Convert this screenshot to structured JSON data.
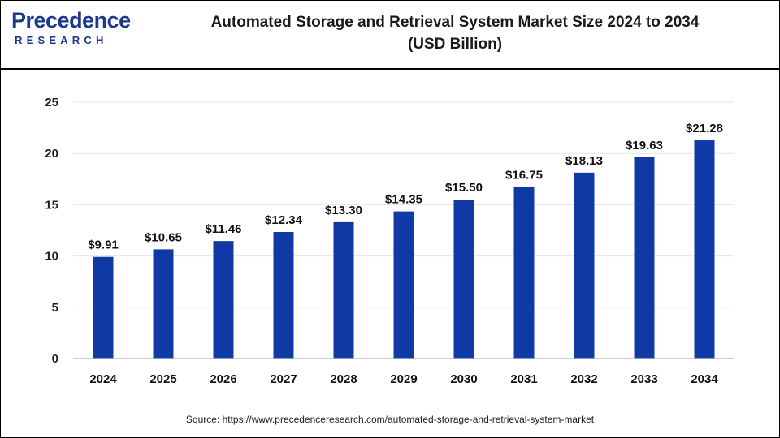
{
  "header": {
    "logo_main": "Precedence",
    "logo_sub": "RESEARCH",
    "title_line1": "Automated Storage and Retrieval System Market Size 2024 to 2034",
    "title_line2": "(USD Billion)"
  },
  "source": "Source: https://www.precedenceresearch.com/automated-storage-and-retrieval-system-market",
  "colors": {
    "bar": "#0f3aa6",
    "brand": "#1b3a8c"
  },
  "chart_data": {
    "type": "bar",
    "title": "Automated Storage and Retrieval System Market Size 2024 to 2034 (USD Billion)",
    "categories": [
      "2024",
      "2025",
      "2026",
      "2027",
      "2028",
      "2029",
      "2030",
      "2031",
      "2032",
      "2033",
      "2034"
    ],
    "values": [
      9.91,
      10.65,
      11.46,
      12.34,
      13.3,
      14.35,
      15.5,
      16.75,
      18.13,
      19.63,
      21.28
    ],
    "value_labels": [
      "$9.91",
      "$10.65",
      "$11.46",
      "$12.34",
      "$13.30",
      "$14.35",
      "$15.50",
      "$16.75",
      "$18.13",
      "$19.63",
      "$21.28"
    ],
    "yticks": [
      "0",
      "5",
      "10",
      "15",
      "20",
      "25"
    ],
    "ylim": [
      0,
      25
    ],
    "grid": true,
    "legend": "none"
  }
}
